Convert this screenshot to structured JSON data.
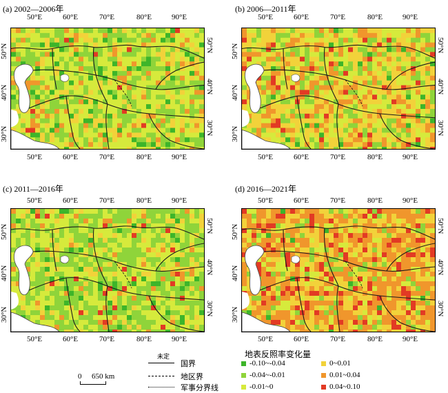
{
  "panels": [
    {
      "title": "(a) 2002—2006年",
      "x_ticks_top": [
        "50°E",
        "60°E",
        "70°E",
        "80°E",
        "90°E"
      ],
      "x_ticks_bottom": [
        "50°E",
        "60°E",
        "70°E",
        "80°E",
        "90°E"
      ],
      "y_ticks_left": [
        "50°N",
        "40°N",
        "30°N"
      ],
      "y_ticks_right": [
        "50°N",
        "40°N",
        "30°N"
      ],
      "dominant_class": "-0.01~0",
      "notes": "mostly yellow-green with scattered orange patches"
    },
    {
      "title": "(b) 2006—2011年",
      "x_ticks_top": [
        "50°E",
        "60°E",
        "70°E",
        "80°E",
        "90°E"
      ],
      "x_ticks_bottom": [
        "50°E",
        "60°E",
        "70°E",
        "80°E",
        "90°E"
      ],
      "y_ticks_left": [
        "50°N",
        "40°N",
        "30°N"
      ],
      "y_ticks_right": [
        "50°N",
        "40°N",
        "30°N"
      ],
      "dominant_class": "0~0.01"
    },
    {
      "title": "(c) 2011—2016年",
      "x_ticks_top": [
        "50°E",
        "60°E",
        "70°E",
        "80°E",
        "90°E"
      ],
      "x_ticks_bottom": [
        "50°E",
        "60°E",
        "70°E",
        "80°E",
        "90°E"
      ],
      "y_ticks_left": [
        "50°N",
        "40°N",
        "30°N"
      ],
      "y_ticks_right": [
        "50°N",
        "40°N",
        "30°N"
      ],
      "dominant_class": "-0.04~-0.01"
    },
    {
      "title": "(d) 2016—2021年",
      "x_ticks_top": [
        "50°E",
        "60°E",
        "70°E",
        "80°E",
        "90°E"
      ],
      "x_ticks_bottom": [
        "50°E",
        "60°E",
        "70°E",
        "80°E",
        "90°E"
      ],
      "y_ticks_left": [
        "50°N",
        "40°N",
        "30°N"
      ],
      "y_ticks_right": [
        "50°N",
        "40°N",
        "30°N"
      ],
      "dominant_class": "0.01~0.04"
    }
  ],
  "legend": {
    "title": "地表反照率变化量",
    "classes": [
      {
        "label": "-0.10~-0.04",
        "color": "#3db52a"
      },
      {
        "label": "-0.04~-0.01",
        "color": "#8fd43a"
      },
      {
        "label": "-0.01~0",
        "color": "#d6ea3c"
      },
      {
        "label": "0~0.01",
        "color": "#f2d23a"
      },
      {
        "label": "0.01~0.04",
        "color": "#f0962c"
      },
      {
        "label": "0.04~0.10",
        "color": "#e23a24"
      }
    ],
    "boundaries": [
      {
        "label": "国界",
        "note": "未定"
      },
      {
        "label": "地区界"
      },
      {
        "label": "军事分界线"
      }
    ],
    "scale": {
      "zero": "0",
      "distance": "650 km"
    }
  },
  "colors": {
    "water": "#ffffff",
    "border": "#1a1a1a"
  }
}
